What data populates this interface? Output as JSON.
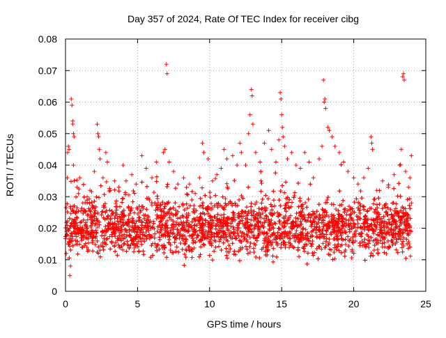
{
  "chart_data": {
    "type": "scatter",
    "title": "Day 357 of 2024, Rate Of TEC Index for receiver cibg",
    "xlabel": "GPS time / hours",
    "ylabel": "ROTI / TECUs",
    "xlim": [
      0,
      25
    ],
    "ylim": [
      0,
      0.08
    ],
    "xticks": [
      0,
      5,
      10,
      15,
      20,
      25
    ],
    "xtick_labels": [
      "0",
      "5",
      "10",
      "15",
      "20",
      "25"
    ],
    "yticks": [
      0,
      0.01,
      0.02,
      0.03,
      0.04,
      0.05,
      0.06,
      0.07,
      0.08
    ],
    "ytick_labels": [
      "0",
      "0.01",
      "0.02",
      "0.03",
      "0.04",
      "0.05",
      "0.06",
      "0.07",
      "0.08"
    ],
    "grid": true,
    "marker": "plus",
    "color": "#ff0000",
    "x_data_range": [
      0,
      24
    ],
    "band": {
      "typical_low": 0.008,
      "typical_high": 0.03,
      "center": 0.017
    },
    "series": [
      {
        "name": "ROTI",
        "points": [
          [
            0.05,
            0.012
          ],
          [
            0.1,
            0.018
          ],
          [
            0.12,
            0.036
          ],
          [
            0.15,
            0.044
          ],
          [
            0.2,
            0.046
          ],
          [
            0.25,
            0.045
          ],
          [
            0.3,
            0.005
          ],
          [
            0.35,
            0.008
          ],
          [
            0.4,
            0.061
          ],
          [
            0.45,
            0.059
          ],
          [
            0.5,
            0.054
          ],
          [
            0.5,
            0.053
          ],
          [
            0.55,
            0.05
          ],
          [
            0.6,
            0.049
          ],
          [
            0.55,
            0.04
          ],
          [
            0.7,
            0.025
          ],
          [
            0.8,
            0.033
          ],
          [
            0.9,
            0.031
          ],
          [
            1.0,
            0.036
          ],
          [
            1.2,
            0.028
          ],
          [
            1.5,
            0.03
          ],
          [
            1.7,
            0.032
          ],
          [
            2.0,
            0.038
          ],
          [
            2.2,
            0.053
          ],
          [
            2.25,
            0.05
          ],
          [
            2.3,
            0.049
          ],
          [
            2.35,
            0.045
          ],
          [
            2.4,
            0.042
          ],
          [
            2.6,
            0.036
          ],
          [
            2.8,
            0.044
          ],
          [
            2.9,
            0.041
          ],
          [
            3.1,
            0.032
          ],
          [
            3.4,
            0.035
          ],
          [
            3.7,
            0.033
          ],
          [
            4.0,
            0.04
          ],
          [
            4.2,
            0.035
          ],
          [
            4.6,
            0.037
          ],
          [
            4.9,
            0.034
          ],
          [
            5.3,
            0.043
          ],
          [
            5.6,
            0.039
          ],
          [
            6.0,
            0.036
          ],
          [
            6.3,
            0.041
          ],
          [
            6.8,
            0.044
          ],
          [
            6.9,
            0.045
          ],
          [
            7.0,
            0.072
          ],
          [
            7.05,
            0.069
          ],
          [
            7.2,
            0.041
          ],
          [
            7.5,
            0.038
          ],
          [
            7.8,
            0.034
          ],
          [
            8.2,
            0.036
          ],
          [
            8.6,
            0.034
          ],
          [
            9.0,
            0.031
          ],
          [
            9.3,
            0.036
          ],
          [
            9.5,
            0.047
          ],
          [
            9.6,
            0.044
          ],
          [
            9.9,
            0.042
          ],
          [
            10.2,
            0.035
          ],
          [
            10.5,
            0.037
          ],
          [
            10.8,
            0.039
          ],
          [
            11.0,
            0.045
          ],
          [
            11.2,
            0.042
          ],
          [
            11.6,
            0.043
          ],
          [
            11.9,
            0.04
          ],
          [
            12.1,
            0.047
          ],
          [
            12.2,
            0.044
          ],
          [
            12.5,
            0.04
          ],
          [
            12.7,
            0.05
          ],
          [
            12.8,
            0.056
          ],
          [
            12.9,
            0.064
          ],
          [
            12.95,
            0.062
          ],
          [
            13.0,
            0.053
          ],
          [
            13.2,
            0.044
          ],
          [
            13.5,
            0.041
          ],
          [
            13.8,
            0.047
          ],
          [
            14.1,
            0.051
          ],
          [
            14.3,
            0.045
          ],
          [
            14.6,
            0.041
          ],
          [
            14.8,
            0.048
          ],
          [
            14.9,
            0.063
          ],
          [
            14.95,
            0.061
          ],
          [
            15.0,
            0.056
          ],
          [
            15.05,
            0.052
          ],
          [
            15.1,
            0.049
          ],
          [
            15.2,
            0.046
          ],
          [
            15.4,
            0.042
          ],
          [
            15.7,
            0.044
          ],
          [
            16.0,
            0.04
          ],
          [
            16.3,
            0.039
          ],
          [
            16.6,
            0.044
          ],
          [
            16.9,
            0.041
          ],
          [
            17.2,
            0.036
          ],
          [
            17.6,
            0.042
          ],
          [
            17.8,
            0.046
          ],
          [
            17.9,
            0.067
          ],
          [
            17.95,
            0.06
          ],
          [
            18.0,
            0.061
          ],
          [
            18.05,
            0.058
          ],
          [
            18.2,
            0.052
          ],
          [
            18.3,
            0.051
          ],
          [
            18.5,
            0.049
          ],
          [
            18.7,
            0.046
          ],
          [
            19.0,
            0.044
          ],
          [
            19.3,
            0.041
          ],
          [
            19.6,
            0.038
          ],
          [
            20.0,
            0.036
          ],
          [
            20.3,
            0.034
          ],
          [
            20.7,
            0.036
          ],
          [
            21.0,
            0.039
          ],
          [
            21.2,
            0.049
          ],
          [
            21.25,
            0.047
          ],
          [
            21.3,
            0.045
          ],
          [
            21.6,
            0.032
          ],
          [
            22.0,
            0.035
          ],
          [
            22.4,
            0.033
          ],
          [
            22.8,
            0.037
          ],
          [
            23.2,
            0.04
          ],
          [
            23.3,
            0.045
          ],
          [
            23.4,
            0.068
          ],
          [
            23.45,
            0.069
          ],
          [
            23.5,
            0.067
          ],
          [
            23.6,
            0.038
          ],
          [
            23.8,
            0.033
          ],
          [
            24.0,
            0.043
          ],
          [
            23.9,
            0.036
          ],
          [
            24.0,
            0.028
          ]
        ]
      }
    ]
  }
}
